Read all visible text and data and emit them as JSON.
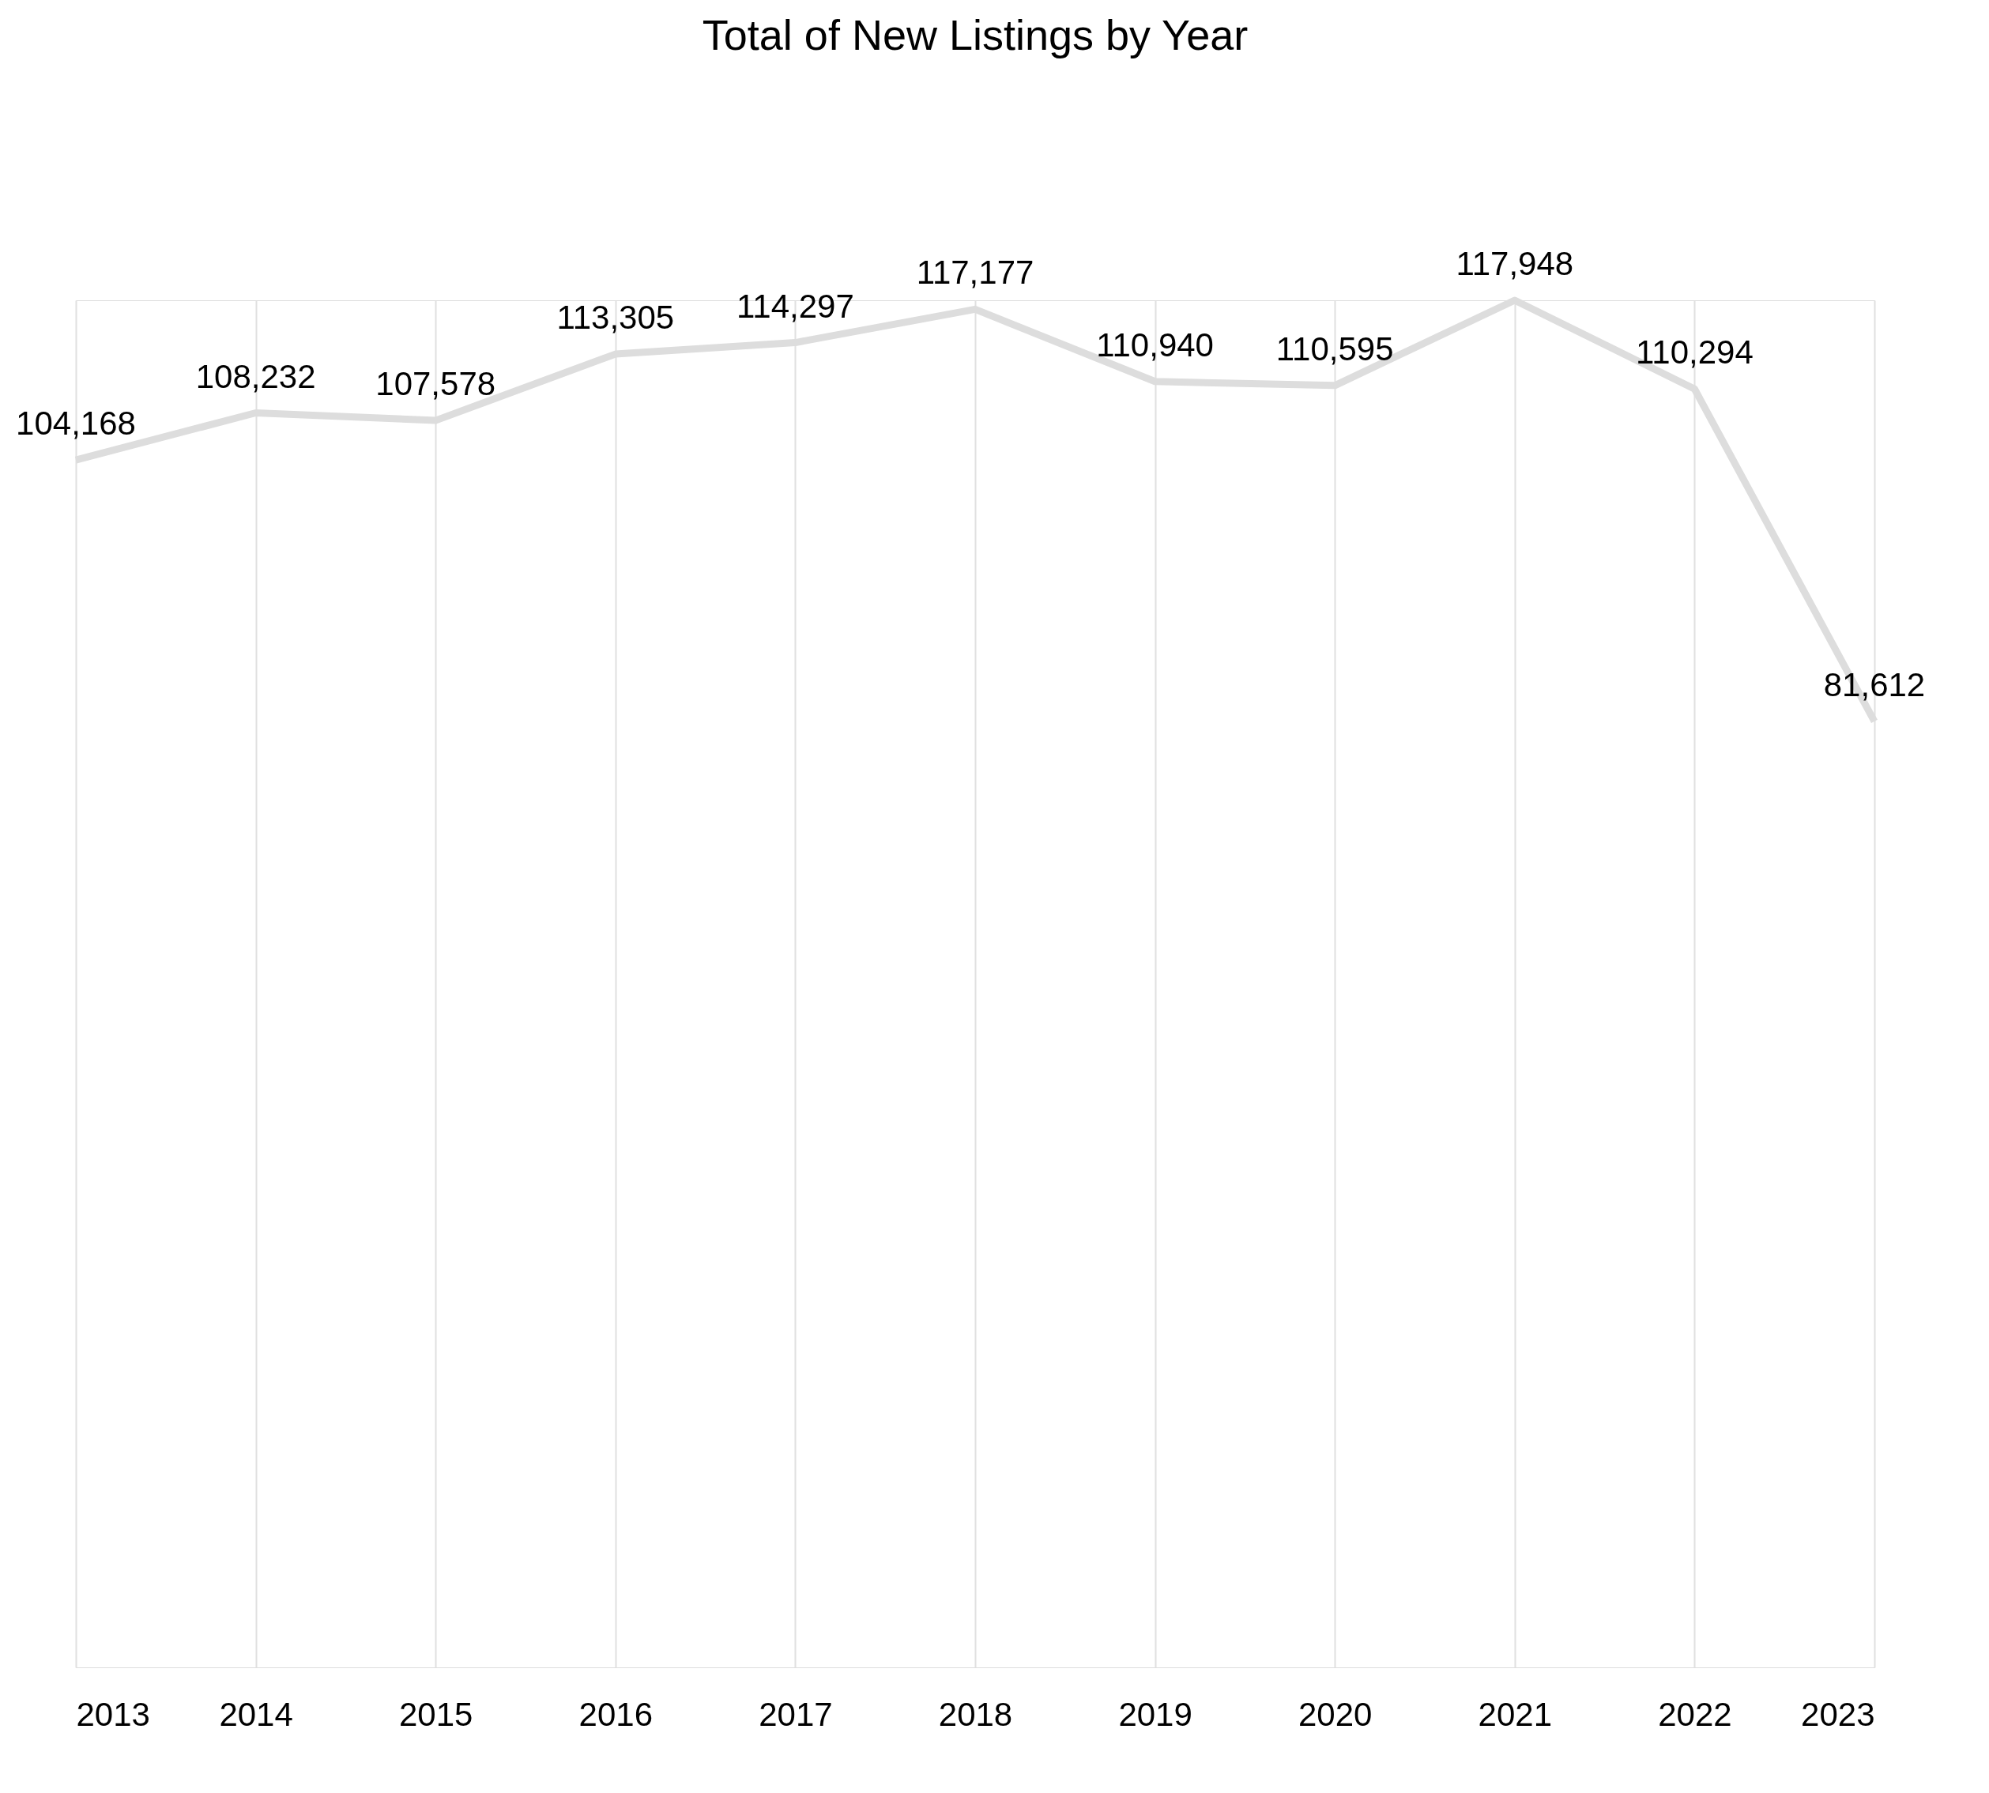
{
  "chart_data": {
    "type": "line",
    "title": "Total of New Listings by Year",
    "categories": [
      "2013",
      "2014",
      "2015",
      "2016",
      "2017",
      "2018",
      "2019",
      "2020",
      "2021",
      "2022",
      "2023"
    ],
    "series": [
      {
        "color": "#dddddd",
        "values": [
          104168,
          108232,
          107578,
          113305,
          114297,
          117177,
          110940,
          110595,
          117948,
          110294,
          81612
        ],
        "value_labels": [
          "104,168",
          "108,232",
          "107,578",
          "113,305",
          "114,297",
          "117,177",
          "110,940",
          "110,595",
          "117,948",
          "110,294",
          "81,612"
        ]
      }
    ],
    "grid": "x",
    "tick_labels": "x",
    "marker": "none",
    "line_style": "solid"
  }
}
